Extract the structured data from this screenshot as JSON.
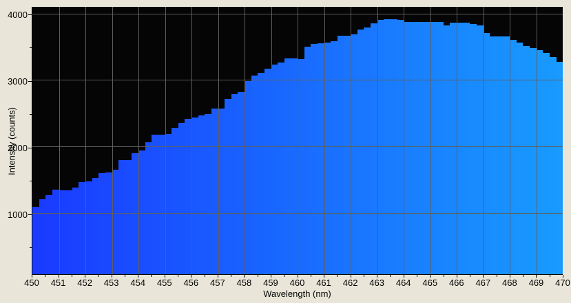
{
  "chart_data": {
    "type": "bar",
    "title": "",
    "xlabel": "Wavelength (nm)",
    "ylabel": "Intensity (counts)",
    "x_start": 450,
    "x_step": 0.25,
    "xlim": [
      450,
      470
    ],
    "ylim": [
      90,
      4110
    ],
    "grid": true,
    "legend": "none",
    "x_major_ticks": [
      450,
      451,
      452,
      453,
      454,
      455,
      456,
      457,
      458,
      459,
      460,
      461,
      462,
      463,
      464,
      465,
      466,
      467,
      468,
      469,
      470
    ],
    "x_tick_labels": [
      "450",
      "451",
      "452",
      "453",
      "454",
      "455",
      "456",
      "457",
      "458",
      "459",
      "460",
      "461",
      "462",
      "463",
      "464",
      "465",
      "466",
      "467",
      "468",
      "469",
      "470"
    ],
    "x_minor_step": 0.5,
    "y_major_ticks": [
      1000,
      2000,
      3000,
      4000
    ],
    "y_tick_labels": [
      "1000",
      "2000",
      "3000",
      "4000"
    ],
    "y_minor_ticks": [
      500,
      1500,
      2500,
      3500
    ],
    "values": [
      1103,
      1216,
      1278,
      1361,
      1354,
      1354,
      1389,
      1474,
      1481,
      1533,
      1608,
      1619,
      1663,
      1807,
      1807,
      1904,
      1950,
      2072,
      2186,
      2186,
      2196,
      2289,
      2361,
      2430,
      2443,
      2474,
      2495,
      2577,
      2577,
      2725,
      2794,
      2828,
      2990,
      3072,
      3113,
      3180,
      3237,
      3268,
      3330,
      3330,
      3320,
      3508,
      3550,
      3565,
      3575,
      3595,
      3673,
      3680,
      3697,
      3766,
      3801,
      3859,
      3914,
      3928,
      3928,
      3914,
      3887,
      3887,
      3887,
      3887,
      3887,
      3887,
      3835,
      3876,
      3876,
      3876,
      3853,
      3835,
      3715,
      3663,
      3663,
      3663,
      3612,
      3570,
      3525,
      3495,
      3457,
      3420,
      3354,
      3285
    ]
  },
  "style": {
    "page_bg": "#e9e6d9",
    "plot_bg": "#050505",
    "grid_color": "#5f5f5f",
    "bar_color_start": "#1a3aff",
    "bar_color_end": "#189bff",
    "text_color": "#000000"
  }
}
